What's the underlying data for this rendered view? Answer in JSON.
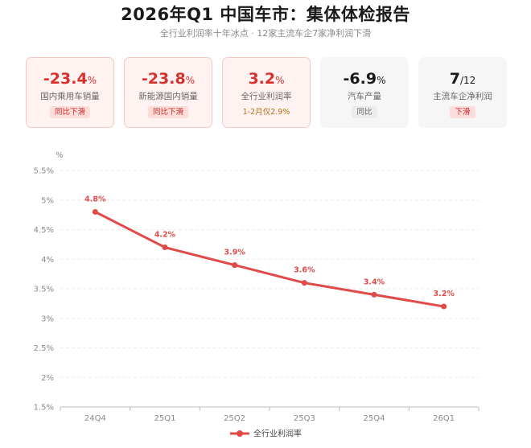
{
  "header": {
    "title": "2026年Q1 中国车市：集体体检报告",
    "subtitle": "全行业利润率十年冰点 · 12家主流车企7家净利润下滑"
  },
  "cards": [
    {
      "value": "-23.4",
      "unit": "%",
      "label": "国内乘用车销量",
      "badge": "同比下滑",
      "style": "red",
      "badge_style": "down"
    },
    {
      "value": "-23.8",
      "unit": "%",
      "label": "新能源国内销量",
      "badge": "同比下滑",
      "style": "red",
      "badge_style": "down"
    },
    {
      "value": "3.2",
      "unit": "%",
      "label": "全行业利润率",
      "badge": "1-2月仅2.9%",
      "style": "red",
      "badge_style": "note"
    },
    {
      "value": "-6.9",
      "unit": "%",
      "label": "汽车产量",
      "badge": "同比",
      "style": "gray",
      "badge_style": "plain"
    },
    {
      "value": "7",
      "unit": "/12",
      "label": "主流车企净利润",
      "badge": "下滑",
      "style": "gray",
      "badge_style": "down"
    }
  ],
  "chart_data": {
    "type": "line",
    "title": "",
    "xlabel": "",
    "ylabel": "%",
    "categories": [
      "24Q4",
      "25Q1",
      "25Q2",
      "25Q3",
      "25Q4",
      "26Q1"
    ],
    "series": [
      {
        "name": "全行业利润率",
        "values": [
          4.8,
          4.2,
          3.9,
          3.6,
          3.4,
          3.2
        ],
        "color": "#e04b47"
      }
    ],
    "data_labels": [
      "4.8%",
      "4.2%",
      "3.9%",
      "3.6%",
      "3.4%",
      "3.2%"
    ],
    "y_ticks": [
      1.5,
      2,
      2.5,
      3,
      3.5,
      4,
      4.5,
      5,
      5.5
    ],
    "y_tick_labels": [
      "1.5%",
      "2%",
      "2.5%",
      "3%",
      "3.5%",
      "4%",
      "4.5%",
      "5%",
      "5.5%"
    ],
    "ylim": [
      1.5,
      5.5
    ],
    "grid": true,
    "legend_position": "bottom-center"
  }
}
